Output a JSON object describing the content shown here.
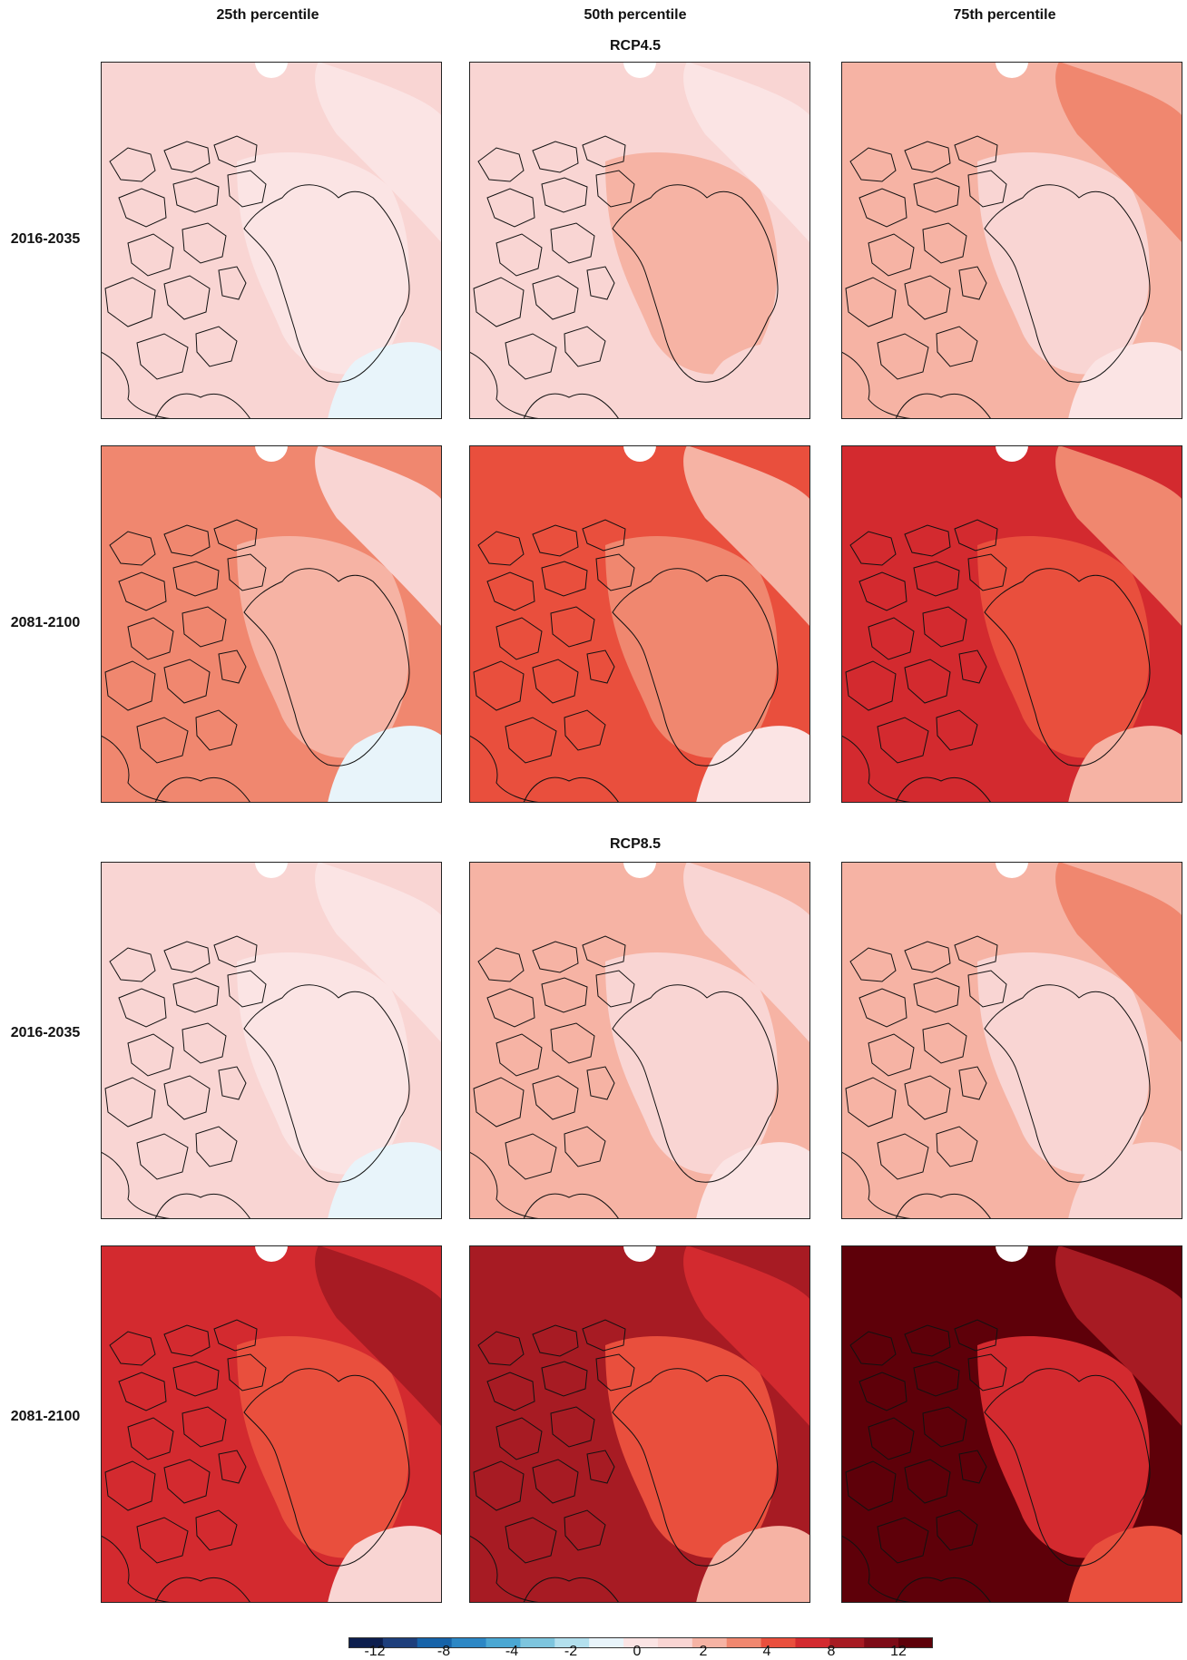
{
  "columns": [
    "25th percentile",
    "50th percentile",
    "75th percentile"
  ],
  "scenarios": [
    "RCP4.5",
    "RCP8.5"
  ],
  "rows": [
    "2016-2035",
    "2081-2100",
    "2016-2035",
    "2081-2100"
  ],
  "panels": [
    {
      "scenario": "RCP4.5",
      "period": "2016-2035",
      "percentile": "25th percentile",
      "bg": "#f9d5d3",
      "zones": [
        "#fbe4e4",
        "#fbe4e4",
        "#e8f4fa"
      ]
    },
    {
      "scenario": "RCP4.5",
      "period": "2016-2035",
      "percentile": "50th percentile",
      "bg": "#f9d5d3",
      "zones": [
        "#f6b3a4",
        "#fbe4e4",
        "#f9d5d3"
      ]
    },
    {
      "scenario": "RCP4.5",
      "period": "2016-2035",
      "percentile": "75th percentile",
      "bg": "#f6b3a4",
      "zones": [
        "#f9d5d3",
        "#f0876f",
        "#fbe4e4"
      ]
    },
    {
      "scenario": "RCP4.5",
      "period": "2081-2100",
      "percentile": "25th percentile",
      "bg": "#f0876f",
      "zones": [
        "#f6b3a4",
        "#f9d5d3",
        "#e8f4fa"
      ]
    },
    {
      "scenario": "RCP4.5",
      "period": "2081-2100",
      "percentile": "50th percentile",
      "bg": "#e94f3d",
      "zones": [
        "#f0876f",
        "#f6b3a4",
        "#fbe4e4"
      ]
    },
    {
      "scenario": "RCP4.5",
      "period": "2081-2100",
      "percentile": "75th percentile",
      "bg": "#d32a2f",
      "zones": [
        "#e94f3d",
        "#f0876f",
        "#f6b3a4"
      ]
    },
    {
      "scenario": "RCP8.5",
      "period": "2016-2035",
      "percentile": "25th percentile",
      "bg": "#f9d5d3",
      "zones": [
        "#fbe4e4",
        "#fbe4e4",
        "#e8f4fa"
      ]
    },
    {
      "scenario": "RCP8.5",
      "period": "2016-2035",
      "percentile": "50th percentile",
      "bg": "#f6b3a4",
      "zones": [
        "#f9d5d3",
        "#f9d5d3",
        "#fbe4e4"
      ]
    },
    {
      "scenario": "RCP8.5",
      "period": "2016-2035",
      "percentile": "75th percentile",
      "bg": "#f6b3a4",
      "zones": [
        "#f9d5d3",
        "#f0876f",
        "#f9d5d3"
      ]
    },
    {
      "scenario": "RCP8.5",
      "period": "2081-2100",
      "percentile": "25th percentile",
      "bg": "#d32a2f",
      "zones": [
        "#e94f3d",
        "#a71b23",
        "#f9d5d3"
      ]
    },
    {
      "scenario": "RCP8.5",
      "period": "2081-2100",
      "percentile": "50th percentile",
      "bg": "#a71b23",
      "zones": [
        "#e94f3d",
        "#d32a2f",
        "#f6b3a4"
      ]
    },
    {
      "scenario": "RCP8.5",
      "period": "2081-2100",
      "percentile": "75th percentile",
      "bg": "#5e0009",
      "zones": [
        "#d32a2f",
        "#a71b23",
        "#e94f3d"
      ]
    }
  ],
  "colorbar": {
    "colors": [
      "#0c1e4e",
      "#1e3f7c",
      "#1663a9",
      "#2c87c5",
      "#4aa7d3",
      "#7dc5de",
      "#b3e0ee",
      "#e8f4fa",
      "#fbe4e4",
      "#f9d5d3",
      "#f6b3a4",
      "#f0876f",
      "#e94f3d",
      "#d32a2f",
      "#a71b23",
      "#7d0b17",
      "#5e0009"
    ],
    "tick_labels": [
      "-12",
      "-8",
      "-4",
      "-2",
      "0",
      "2",
      "4",
      "8",
      "12"
    ]
  }
}
